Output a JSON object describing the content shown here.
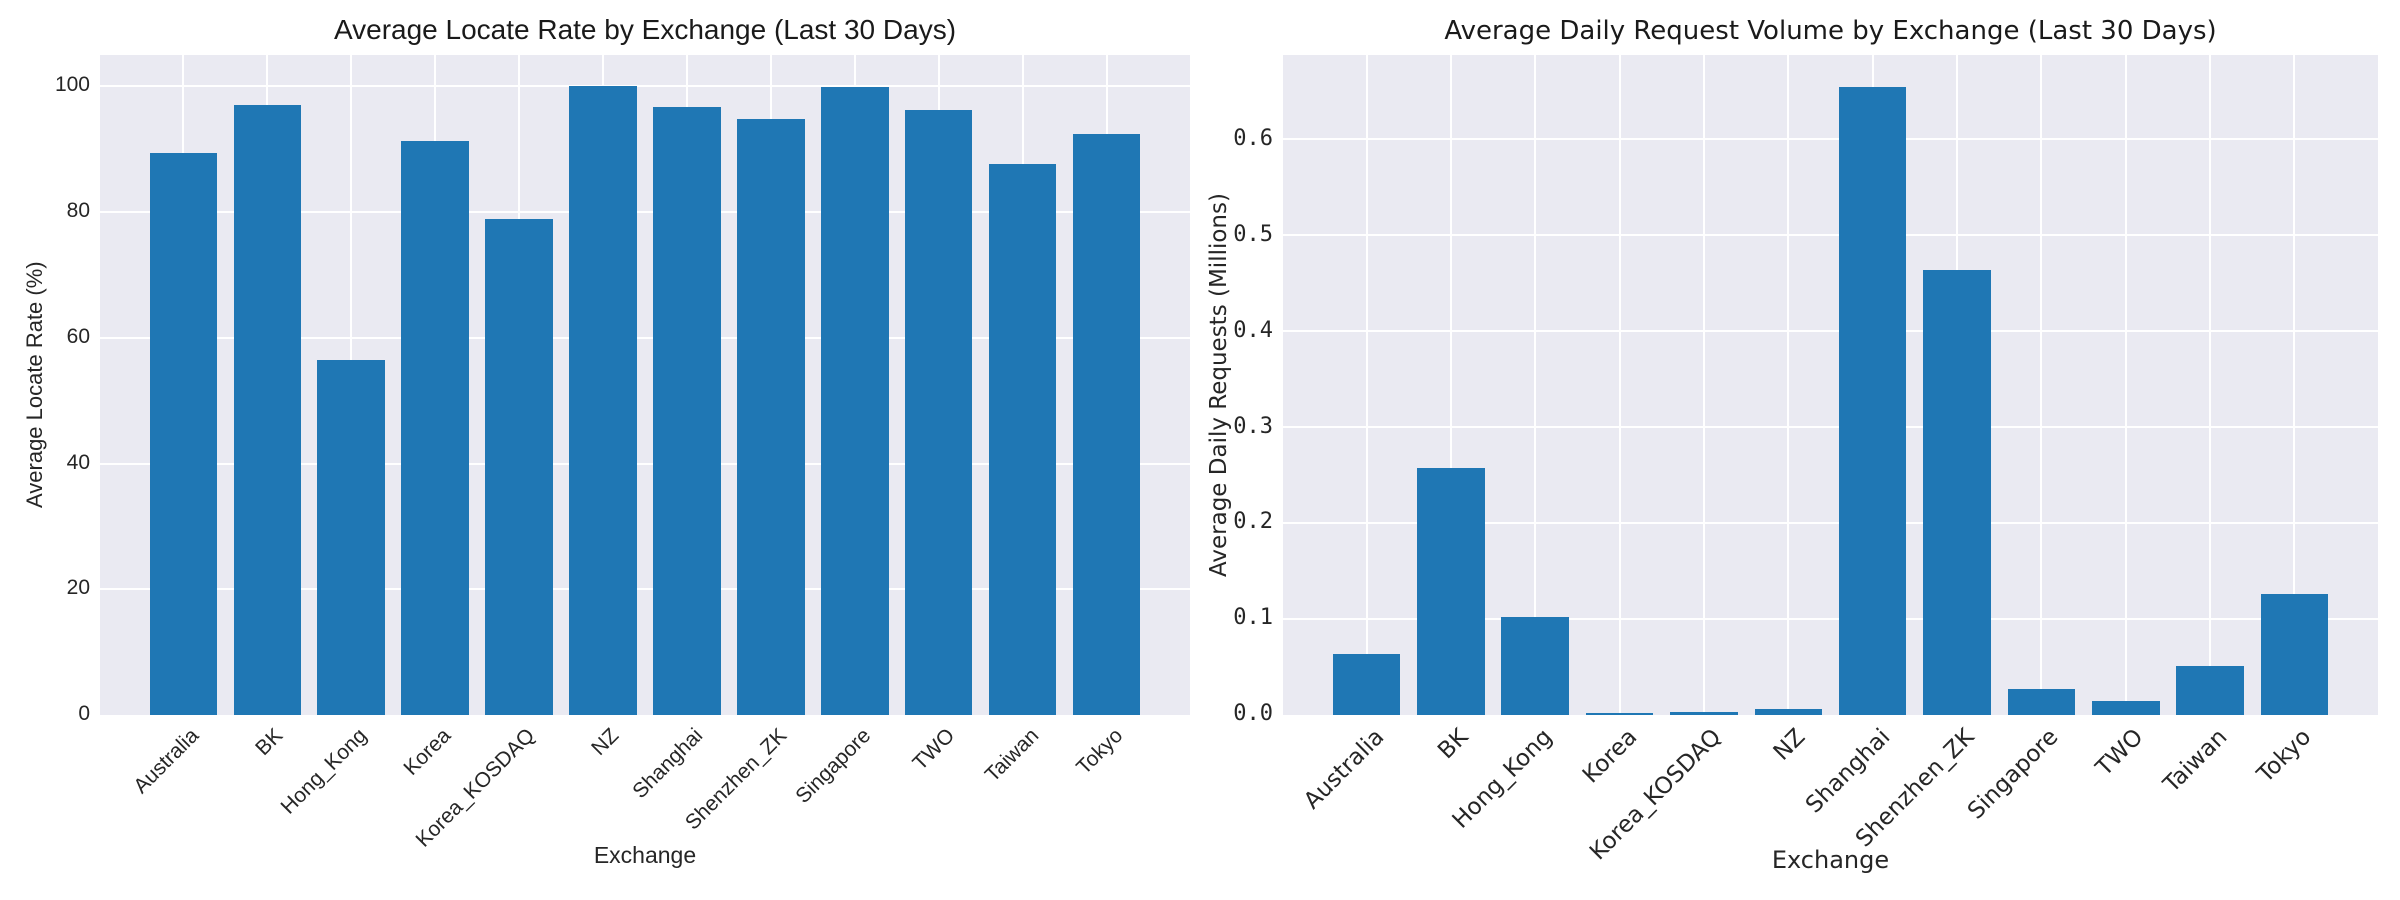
{
  "figure": {
    "background": "#ffffff",
    "plot_background": "#eaeaf2",
    "gridline_color": "#ffffff",
    "text_color": "#262626"
  },
  "chart_data": [
    {
      "type": "bar",
      "title": "Average Locate Rate by Exchange (Last 30 Days)",
      "xlabel": "Exchange",
      "ylabel": "Average Locate Rate (%)",
      "categories": [
        "Australia",
        "BK",
        "Hong_Kong",
        "Korea",
        "Korea_KOSDAQ",
        "NZ",
        "Shanghai",
        "Shenzhen_ZK",
        "Singapore",
        "TWO",
        "Taiwan",
        "Tokyo"
      ],
      "values": [
        89.4,
        97.1,
        56.5,
        91.4,
        78.9,
        100.0,
        96.7,
        94.8,
        99.9,
        96.3,
        87.7,
        92.4
      ],
      "bar_color": "#1f77b4",
      "ylim": [
        0,
        105
      ],
      "yticks": [
        0,
        20,
        40,
        60,
        80,
        100
      ],
      "ytick_labels": [
        "0",
        "20",
        "40",
        "60",
        "80",
        "100"
      ],
      "grid": true,
      "legend": null
    },
    {
      "type": "bar",
      "title": "Average Daily Request Volume by Exchange (Last 30 Days)",
      "xlabel": "Exchange",
      "ylabel": "Average Daily Requests (Millions)",
      "categories": [
        "Australia",
        "BK",
        "Hong_Kong",
        "Korea",
        "Korea_KOSDAQ",
        "NZ",
        "Shanghai",
        "Shenzhen_ZK",
        "Singapore",
        "TWO",
        "Taiwan",
        "Tokyo"
      ],
      "values": [
        0.064,
        0.258,
        0.102,
        0.002,
        0.003,
        0.006,
        0.655,
        0.464,
        0.027,
        0.015,
        0.051,
        0.126
      ],
      "bar_color": "#1f77b4",
      "ylim": [
        0,
        0.688
      ],
      "yticks": [
        0.0,
        0.1,
        0.2,
        0.3,
        0.4,
        0.5,
        0.6
      ],
      "ytick_labels": [
        "0.0",
        "0.1",
        "0.2",
        "0.3",
        "0.4",
        "0.5",
        "0.6"
      ],
      "grid": true,
      "legend": null
    }
  ]
}
